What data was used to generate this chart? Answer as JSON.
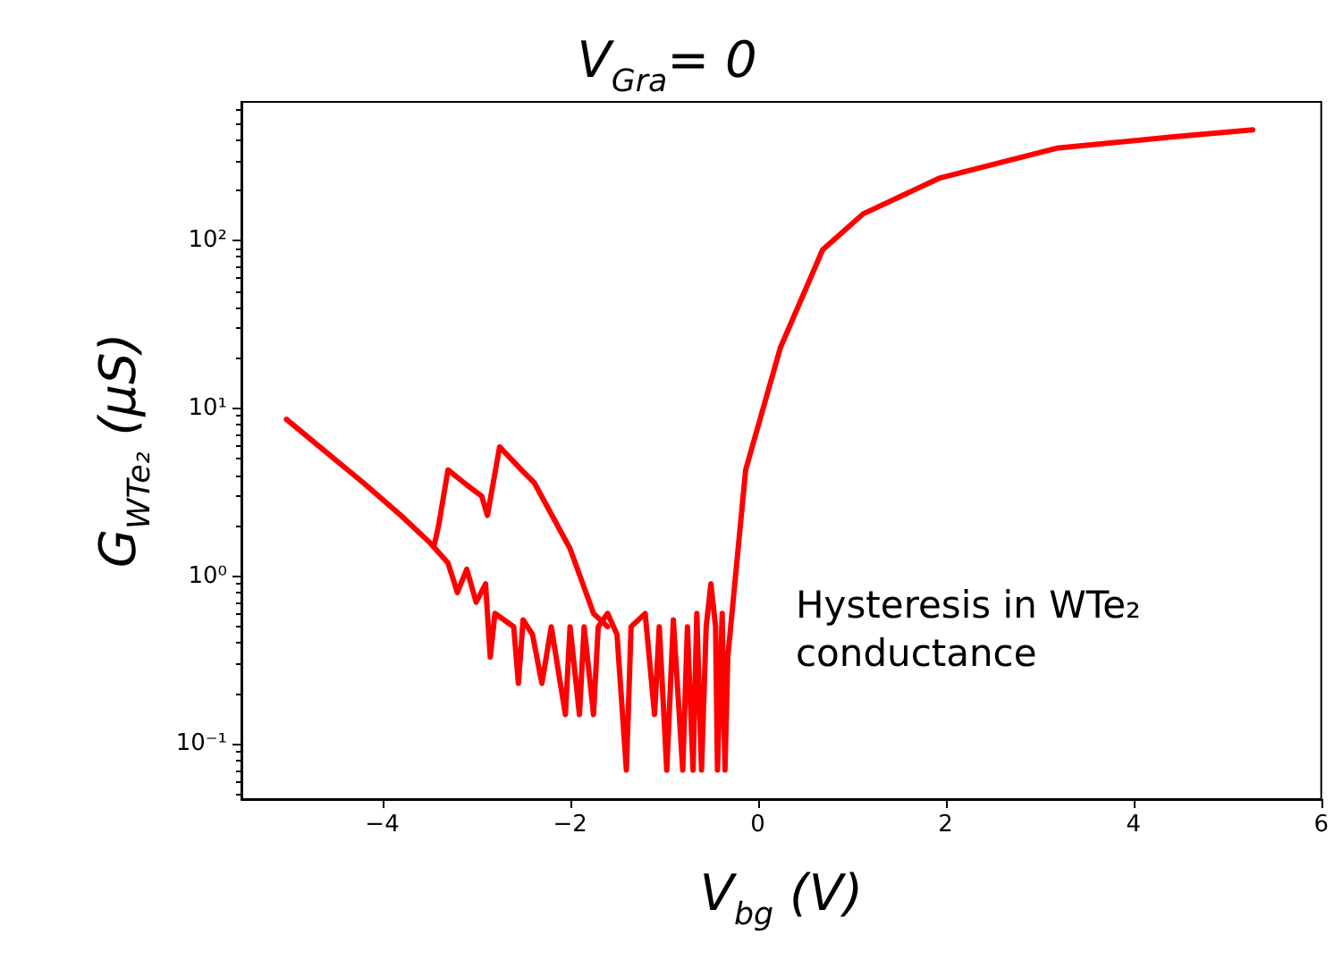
{
  "chart_data": {
    "type": "line",
    "title": "V$_{Gra}$= 0",
    "xlabel": "V$_{bg}$ (V)",
    "ylabel": "G$_{WTe₂}$ (μS)",
    "annotations": [
      "Hysteresis in WTe₂ conductance"
    ],
    "log": "y",
    "grid": false,
    "marker": "none",
    "line_style": "solid",
    "xlim": [
      -5.5,
      6
    ],
    "xticks": [
      -4,
      -2,
      0,
      2,
      4,
      6
    ],
    "ylim": [
      0.047,
      670
    ],
    "yticks": [
      {
        "value": 0.1,
        "label": "10⁻¹"
      },
      {
        "value": 1,
        "label": "10⁰"
      },
      {
        "value": 10,
        "label": "10¹"
      },
      {
        "value": 100,
        "label": "10²"
      }
    ],
    "series": [
      {
        "color": "#ff0000",
        "x": [
          -5.02,
          -4.6,
          -4.2,
          -3.8,
          -3.5,
          -3.3,
          -3.2,
          -3.1,
          -3.0,
          -2.9,
          -2.85,
          -2.8,
          -2.6,
          -2.55,
          -2.5,
          -2.4,
          -2.3,
          -2.2,
          -2.05,
          -2.0,
          -1.9,
          -1.85,
          -1.75,
          -1.7,
          -1.6,
          -1.5,
          -1.4,
          -1.35,
          -1.2,
          -1.1,
          -1.05,
          -0.97,
          -0.9,
          -0.8,
          -0.75,
          -0.69,
          -0.65,
          -0.6,
          -0.55,
          -0.5,
          -0.45,
          -0.43,
          -0.38,
          -0.35,
          -0.32,
          -0.13,
          0.24,
          0.69,
          1.12,
          1.93,
          3.18,
          4.43,
          5.27
        ],
        "values": [
          8.6,
          5.5,
          3.6,
          2.3,
          1.6,
          1.2,
          0.8,
          1.1,
          0.7,
          0.9,
          0.33,
          0.6,
          0.5,
          0.23,
          0.55,
          0.45,
          0.23,
          0.5,
          0.15,
          0.5,
          0.15,
          0.5,
          0.15,
          0.5,
          0.6,
          0.45,
          0.07,
          0.5,
          0.6,
          0.15,
          0.5,
          0.07,
          0.55,
          0.07,
          0.5,
          0.07,
          0.6,
          0.07,
          0.5,
          0.9,
          0.5,
          0.07,
          0.6,
          0.07,
          0.33,
          4.3,
          23,
          88,
          144,
          235,
          355,
          415,
          457
        ]
      },
      {
        "color": "#ff0000",
        "x": [
          -3.45,
          -3.4,
          -3.3,
          -3.1,
          -2.94,
          -2.88,
          -2.75,
          -2.5,
          -2.38,
          -2.0,
          -1.75,
          -1.6
        ],
        "values": [
          1.5,
          2,
          4.3,
          3.5,
          3.0,
          2.3,
          5.9,
          4.2,
          3.6,
          1.46,
          0.6,
          0.5
        ]
      }
    ]
  }
}
